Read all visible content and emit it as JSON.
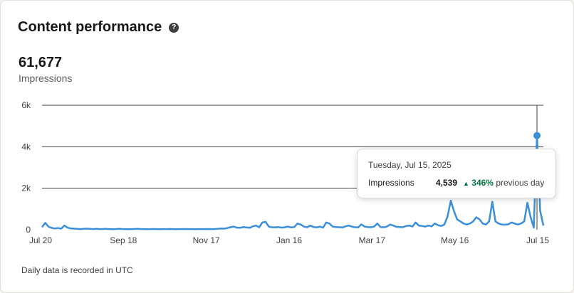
{
  "card": {
    "title": "Content performance",
    "help_icon": "question-circle-icon"
  },
  "kpi": {
    "value": "61,677",
    "label": "Impressions"
  },
  "footer_note": "Daily data is recorded in UTC",
  "tooltip": {
    "date": "Tuesday, Jul 15, 2025",
    "metric": "Impressions",
    "value": "4,539",
    "change": "346%",
    "change_suffix": "previous day",
    "trend_icon": "triangle-up-icon"
  },
  "colors": {
    "line": "#3a8fd9",
    "positive": "#057642"
  },
  "chart_data": {
    "type": "line",
    "y_ticks": [
      "0",
      "2k",
      "4k",
      "6k"
    ],
    "x_ticks": [
      "Jul 20",
      "Sep 18",
      "Nov 17",
      "Jan 16",
      "Mar 17",
      "May 16",
      "Jul 15"
    ],
    "ylim": [
      0,
      6000
    ],
    "grid": true,
    "highlight": {
      "x": "Jul 15",
      "y": 4539
    },
    "series": [
      {
        "values": [
          120,
          330,
          150,
          90,
          60,
          80,
          50,
          200,
          100,
          60,
          50,
          40,
          30,
          40,
          50,
          40,
          30,
          40,
          30,
          35,
          40,
          30,
          25,
          30,
          40,
          35,
          30,
          25,
          30,
          35,
          40,
          30,
          30,
          25,
          30,
          35,
          30,
          25,
          30,
          30,
          35,
          30,
          25,
          30,
          30,
          35,
          30,
          30,
          25,
          30,
          30,
          30,
          35,
          30,
          30,
          40,
          60,
          50,
          80,
          120,
          150,
          100,
          90,
          130,
          110,
          90,
          160,
          200,
          120,
          350,
          380,
          150,
          120,
          110,
          130,
          100,
          120,
          150,
          110,
          130,
          300,
          250,
          150,
          120,
          200,
          130,
          110,
          150,
          100,
          350,
          300,
          150,
          130,
          120,
          110,
          160,
          200,
          150,
          120,
          110,
          260,
          150,
          130,
          120,
          150,
          300,
          130,
          120,
          150,
          250,
          200,
          140,
          130,
          120,
          180,
          200,
          150,
          350,
          200,
          180,
          150,
          200,
          160,
          300,
          220,
          180,
          250,
          650,
          1400,
          900,
          500,
          400,
          300,
          250,
          300,
          400,
          600,
          500,
          300,
          250,
          400,
          1350,
          400,
          300,
          250,
          240,
          260,
          350,
          300,
          250,
          300,
          400,
          1300,
          600,
          100,
          4539,
          900,
          200
        ]
      }
    ]
  }
}
